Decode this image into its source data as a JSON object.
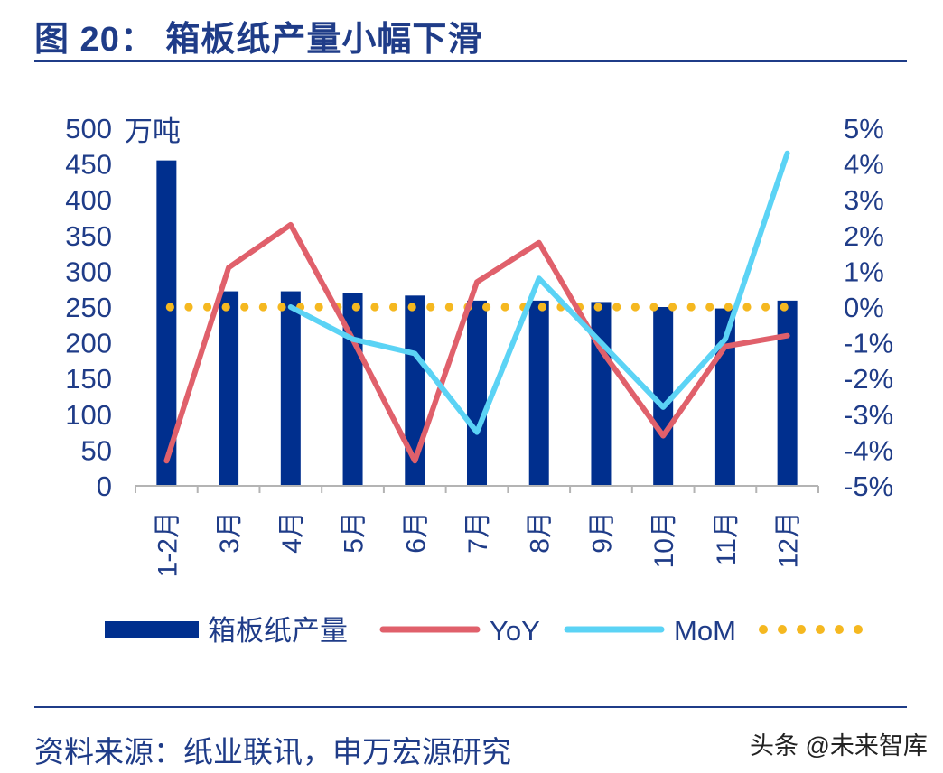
{
  "page": {
    "title": "图 20：  箱板纸产量小幅下滑",
    "source": "资料来源：纸业联讯，申万宏源研究",
    "watermark": "头条 @未来智库"
  },
  "chart_data": {
    "type": "bar",
    "categories": [
      "1-2月",
      "3月",
      "4月",
      "5月",
      "6月",
      "7月",
      "8月",
      "9月",
      "10月",
      "11月",
      "12月"
    ],
    "y_unit_label": "万吨",
    "ylim": [
      0,
      500
    ],
    "y_ticks": [
      "0",
      "50",
      "100",
      "150",
      "200",
      "250",
      "300",
      "350",
      "400",
      "450",
      "500"
    ],
    "y2lim": [
      -5,
      5
    ],
    "y2_ticks": [
      "-5%",
      "-4%",
      "-3%",
      "-2%",
      "-1%",
      "0%",
      "1%",
      "2%",
      "3%",
      "4%",
      "5%"
    ],
    "legend_position": "bottom",
    "grid": false,
    "series": [
      {
        "name": "箱板纸产量",
        "kind": "bar",
        "axis": "left",
        "color": "#002f8e",
        "values": [
          455,
          272,
          272,
          269,
          266,
          259,
          259,
          257,
          250,
          248,
          259
        ]
      },
      {
        "name": "YoY",
        "kind": "line",
        "axis": "right",
        "color": "#e0606b",
        "values": [
          -4.3,
          1.1,
          2.3,
          -0.9,
          -4.3,
          0.7,
          1.8,
          -1.2,
          -3.6,
          -1.1,
          -0.8
        ]
      },
      {
        "name": "MoM",
        "kind": "line",
        "axis": "right",
        "color": "#5bd3f5",
        "values": [
          null,
          null,
          0.0,
          -0.9,
          -1.3,
          -3.5,
          0.8,
          -1.0,
          -2.8,
          -0.9,
          4.3
        ]
      },
      {
        "kind": "dotted-line",
        "axis": "right",
        "color": "#f5b820",
        "values": [
          0,
          0,
          0,
          0,
          0,
          0,
          0,
          0,
          0,
          0,
          0
        ]
      }
    ]
  }
}
